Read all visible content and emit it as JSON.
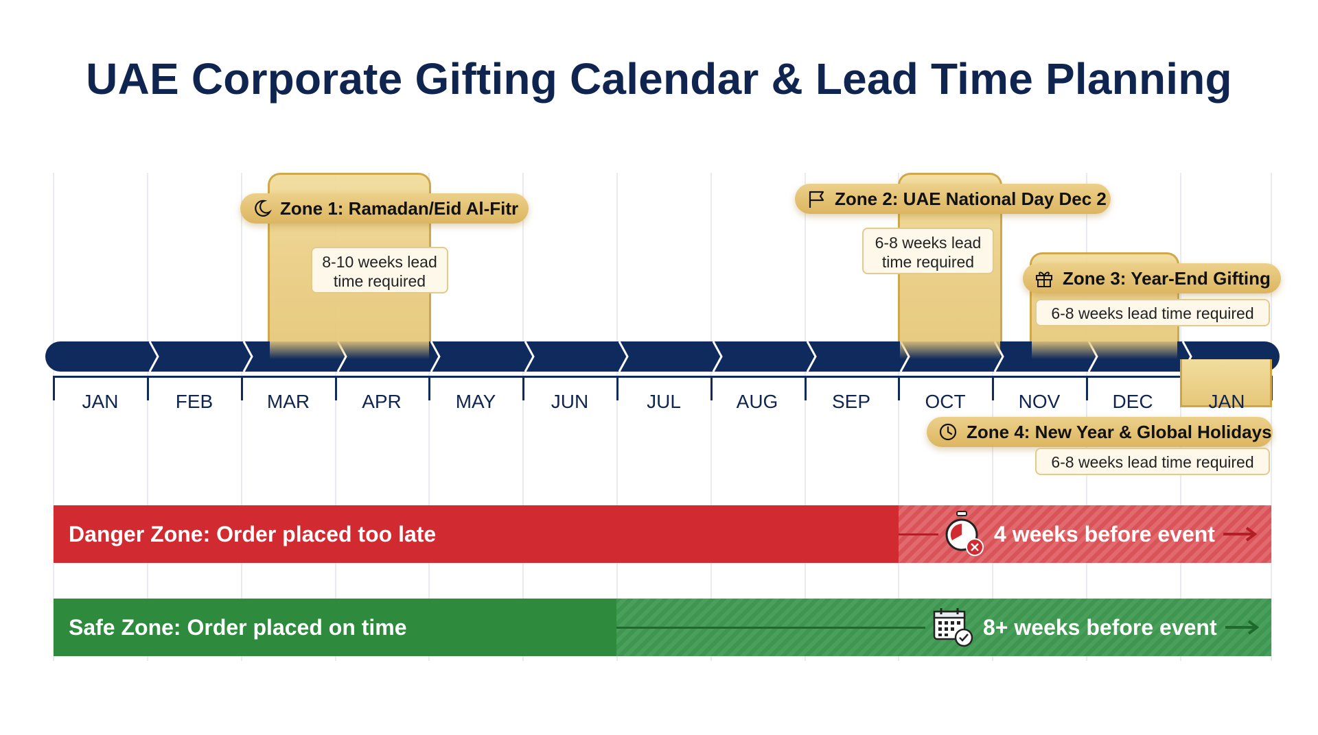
{
  "title": "UAE Corporate Gifting Calendar & Lead Time Planning",
  "months": [
    "JAN",
    "FEB",
    "MAR",
    "APR",
    "MAY",
    "JUN",
    "JUL",
    "AUG",
    "SEP",
    "OCT",
    "NOV",
    "DEC",
    "JAN"
  ],
  "zones": [
    {
      "label": "Zone 1: Ramadan/Eid Al-Fitr",
      "icon": "crescent-moon-icon",
      "note_line1": "8-10 weeks lead",
      "note_line2": "time required"
    },
    {
      "label": "Zone 2: UAE National Day Dec 2",
      "icon": "flag-icon",
      "note_line1": "6-8 weeks lead",
      "note_line2": "time required"
    },
    {
      "label": "Zone 3: Year-End Gifting",
      "icon": "gift-icon",
      "note": "6-8 weeks lead time required"
    },
    {
      "label": "Zone 4: New Year & Global Holidays",
      "icon": "clock-icon",
      "note": "6-8 weeks lead time required"
    }
  ],
  "danger": {
    "label": "Danger Zone: Order placed too late",
    "right_text": "4 weeks before event",
    "icon": "stopwatch-x-icon",
    "color": "#d12a30"
  },
  "safe": {
    "label": "Safe Zone: Order placed on time",
    "right_text": "8+ weeks before event",
    "icon": "calendar-check-icon",
    "color": "#2e8b3e"
  },
  "colors": {
    "navy": "#0f2a5c",
    "gold": "#e6c77a",
    "gold_border": "#cfa443"
  }
}
